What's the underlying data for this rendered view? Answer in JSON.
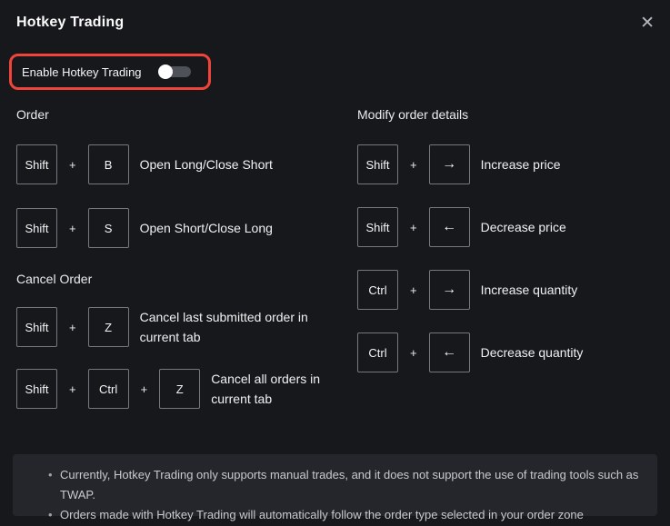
{
  "colors": {
    "page_bg": "#17181b",
    "panel_bg": "#24262b",
    "highlight_red": "#f0443b",
    "keycap_border": "#75797f",
    "toggle_track": "#4e5157",
    "toggle_knob": "#ffffff"
  },
  "modal": {
    "title": "Hotkey Trading",
    "close_icon": "✕"
  },
  "enable": {
    "label": "Enable Hotkey Trading",
    "toggle_state": "off"
  },
  "ui": {
    "plus": "+"
  },
  "sections": {
    "order": {
      "heading": "Order",
      "rows": [
        {
          "keys": [
            "Shift",
            "B"
          ],
          "label": "Open Long/Close Short"
        },
        {
          "keys": [
            "Shift",
            "S"
          ],
          "label": "Open Short/Close Long"
        }
      ]
    },
    "cancel": {
      "heading": "Cancel Order",
      "rows": [
        {
          "keys": [
            "Shift",
            "Z"
          ],
          "label": "Cancel last submitted order in current tab"
        },
        {
          "keys": [
            "Shift",
            "Ctrl",
            "Z"
          ],
          "label": "Cancel all orders in current tab"
        }
      ]
    },
    "modify": {
      "heading": "Modify order details",
      "rows": [
        {
          "keys": [
            "Shift",
            "→"
          ],
          "label": "Increase price"
        },
        {
          "keys": [
            "Shift",
            "←"
          ],
          "label": "Decrease price"
        },
        {
          "keys": [
            "Ctrl",
            "→"
          ],
          "label": "Increase quantity"
        },
        {
          "keys": [
            "Ctrl",
            "←"
          ],
          "label": "Decrease quantity"
        }
      ]
    }
  },
  "notes": {
    "items": [
      "Currently, Hotkey Trading only supports manual trades, and it does not support the use of trading tools such as TWAP.",
      "Orders made with Hotkey Trading will automatically follow the order type selected in your order zone"
    ]
  }
}
